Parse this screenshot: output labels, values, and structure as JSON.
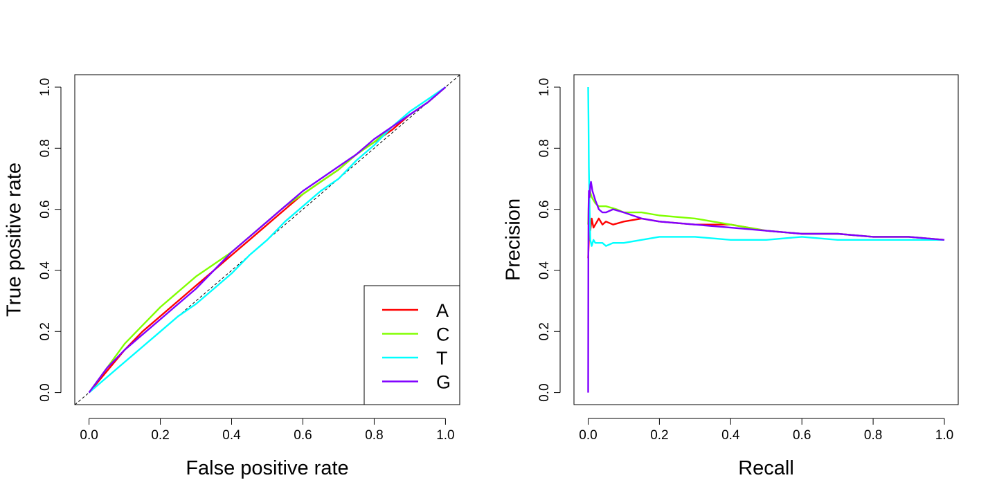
{
  "chart_data": [
    {
      "type": "line",
      "title": "",
      "xlabel": "False positive rate",
      "ylabel": "True positive rate",
      "xlim": [
        0,
        1
      ],
      "ylim": [
        0,
        1
      ],
      "xticks": [
        "0.0",
        "0.2",
        "0.4",
        "0.6",
        "0.8",
        "1.0"
      ],
      "yticks": [
        "0.0",
        "0.2",
        "0.4",
        "0.6",
        "0.8",
        "1.0"
      ],
      "reference_line": {
        "from": [
          0,
          0
        ],
        "to": [
          1,
          1
        ],
        "style": "dashed"
      },
      "legend": {
        "placement": "bottom-right",
        "entries": [
          "A",
          "C",
          "T",
          "G"
        ]
      },
      "series": [
        {
          "name": "A",
          "color": "#ff0000",
          "x": [
            0,
            0.05,
            0.1,
            0.15,
            0.2,
            0.25,
            0.3,
            0.35,
            0.4,
            0.45,
            0.5,
            0.55,
            0.6,
            0.65,
            0.7,
            0.75,
            0.8,
            0.85,
            0.9,
            0.95,
            1.0
          ],
          "y": [
            0,
            0.07,
            0.14,
            0.2,
            0.25,
            0.3,
            0.35,
            0.4,
            0.45,
            0.5,
            0.55,
            0.6,
            0.65,
            0.69,
            0.73,
            0.78,
            0.82,
            0.86,
            0.91,
            0.95,
            1.0
          ]
        },
        {
          "name": "C",
          "color": "#80ff00",
          "x": [
            0,
            0.05,
            0.1,
            0.15,
            0.2,
            0.25,
            0.3,
            0.35,
            0.4,
            0.45,
            0.5,
            0.55,
            0.6,
            0.65,
            0.7,
            0.75,
            0.8,
            0.85,
            0.9,
            0.95,
            1.0
          ],
          "y": [
            0,
            0.08,
            0.16,
            0.22,
            0.28,
            0.33,
            0.38,
            0.42,
            0.46,
            0.51,
            0.56,
            0.61,
            0.65,
            0.69,
            0.73,
            0.78,
            0.82,
            0.87,
            0.91,
            0.95,
            1.0
          ]
        },
        {
          "name": "T",
          "color": "#00ffff",
          "x": [
            0,
            0.05,
            0.1,
            0.15,
            0.2,
            0.25,
            0.3,
            0.35,
            0.4,
            0.45,
            0.5,
            0.55,
            0.6,
            0.65,
            0.7,
            0.75,
            0.8,
            0.85,
            0.9,
            0.95,
            1.0
          ],
          "y": [
            0,
            0.05,
            0.1,
            0.15,
            0.2,
            0.25,
            0.29,
            0.34,
            0.39,
            0.45,
            0.5,
            0.56,
            0.61,
            0.66,
            0.7,
            0.76,
            0.81,
            0.87,
            0.92,
            0.96,
            1.0
          ]
        },
        {
          "name": "G",
          "color": "#8000ff",
          "x": [
            0,
            0.05,
            0.1,
            0.15,
            0.2,
            0.25,
            0.3,
            0.35,
            0.4,
            0.45,
            0.5,
            0.55,
            0.6,
            0.65,
            0.7,
            0.75,
            0.8,
            0.85,
            0.9,
            0.95,
            1.0
          ],
          "y": [
            0,
            0.08,
            0.14,
            0.19,
            0.24,
            0.29,
            0.34,
            0.4,
            0.46,
            0.51,
            0.56,
            0.61,
            0.66,
            0.7,
            0.74,
            0.78,
            0.83,
            0.87,
            0.91,
            0.95,
            1.0
          ]
        }
      ]
    },
    {
      "type": "line",
      "title": "",
      "xlabel": "Recall",
      "ylabel": "Precision",
      "xlim": [
        0,
        1
      ],
      "ylim": [
        0,
        1
      ],
      "xticks": [
        "0.0",
        "0.2",
        "0.4",
        "0.6",
        "0.8",
        "1.0"
      ],
      "yticks": [
        "0.0",
        "0.2",
        "0.4",
        "0.6",
        "0.8",
        "1.0"
      ],
      "series": [
        {
          "name": "A",
          "color": "#ff0000",
          "x": [
            0.0,
            0.002,
            0.004,
            0.006,
            0.01,
            0.015,
            0.02,
            0.03,
            0.04,
            0.05,
            0.07,
            0.1,
            0.15,
            0.2,
            0.3,
            0.4,
            0.5,
            0.6,
            0.7,
            0.8,
            0.9,
            1.0
          ],
          "y": [
            0.44,
            0.5,
            0.56,
            0.53,
            0.57,
            0.54,
            0.55,
            0.57,
            0.55,
            0.56,
            0.55,
            0.56,
            0.57,
            0.56,
            0.55,
            0.55,
            0.53,
            0.52,
            0.52,
            0.51,
            0.51,
            0.5
          ]
        },
        {
          "name": "C",
          "color": "#80ff00",
          "x": [
            0.0,
            0.002,
            0.005,
            0.01,
            0.02,
            0.03,
            0.05,
            0.08,
            0.1,
            0.15,
            0.2,
            0.3,
            0.4,
            0.5,
            0.6,
            0.7,
            0.8,
            0.9,
            1.0
          ],
          "y": [
            0.55,
            0.63,
            0.66,
            0.64,
            0.62,
            0.61,
            0.61,
            0.6,
            0.59,
            0.59,
            0.58,
            0.57,
            0.55,
            0.53,
            0.52,
            0.52,
            0.51,
            0.51,
            0.5
          ]
        },
        {
          "name": "T",
          "color": "#00ffff",
          "x": [
            0.0,
            0.001,
            0.002,
            0.004,
            0.006,
            0.01,
            0.015,
            0.02,
            0.03,
            0.04,
            0.05,
            0.07,
            0.1,
            0.15,
            0.2,
            0.3,
            0.4,
            0.5,
            0.6,
            0.7,
            0.8,
            0.9,
            1.0
          ],
          "y": [
            1.0,
            0.89,
            0.74,
            0.6,
            0.5,
            0.48,
            0.5,
            0.49,
            0.49,
            0.49,
            0.48,
            0.49,
            0.49,
            0.5,
            0.51,
            0.51,
            0.5,
            0.5,
            0.51,
            0.5,
            0.5,
            0.5,
            0.5
          ]
        },
        {
          "name": "G",
          "color": "#8000ff",
          "x": [
            0.0,
            0.0005,
            0.001,
            0.002,
            0.004,
            0.006,
            0.008,
            0.012,
            0.02,
            0.03,
            0.04,
            0.05,
            0.07,
            0.1,
            0.15,
            0.2,
            0.3,
            0.4,
            0.5,
            0.6,
            0.7,
            0.8,
            0.9,
            1.0
          ],
          "y": [
            0.0,
            0.45,
            0.6,
            0.66,
            0.64,
            0.68,
            0.69,
            0.66,
            0.63,
            0.6,
            0.59,
            0.59,
            0.6,
            0.59,
            0.57,
            0.56,
            0.55,
            0.54,
            0.53,
            0.52,
            0.52,
            0.51,
            0.51,
            0.5
          ]
        }
      ]
    }
  ]
}
